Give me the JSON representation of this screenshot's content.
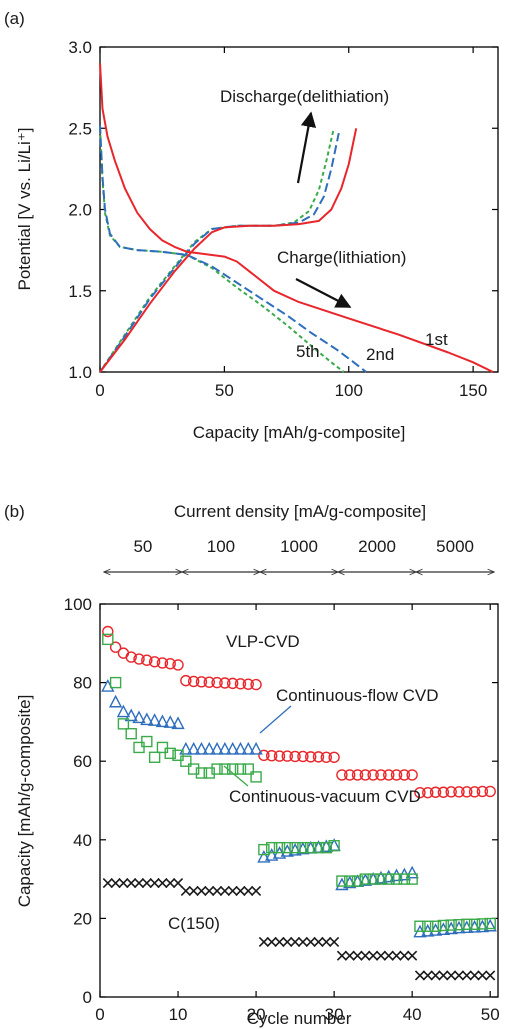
{
  "chart_data": [
    {
      "type": "line",
      "panel_label": "(a)",
      "xlabel": "Capacity [mAh/g-composite]",
      "ylabel": "Potential [V vs. Li/Li⁺]",
      "xlim": [
        0,
        160
      ],
      "ylim": [
        1.0,
        3.0
      ],
      "x_ticks": [
        "0",
        "50",
        "100",
        "150"
      ],
      "y_ticks": [
        "1.0",
        "1.5",
        "2.0",
        "2.5",
        "3.0"
      ],
      "grid": false,
      "series": [
        {
          "name": "1st",
          "color": "#e8262b",
          "dash": "solid",
          "charge": [
            [
              0,
              2.9
            ],
            [
              1,
              2.62
            ],
            [
              3,
              2.45
            ],
            [
              6,
              2.3
            ],
            [
              10,
              2.13
            ],
            [
              15,
              1.98
            ],
            [
              20,
              1.88
            ],
            [
              25,
              1.81
            ],
            [
              30,
              1.77
            ],
            [
              35,
              1.74
            ],
            [
              40,
              1.73
            ],
            [
              50,
              1.71
            ],
            [
              55,
              1.68
            ],
            [
              60,
              1.62
            ],
            [
              70,
              1.5
            ],
            [
              80,
              1.43
            ],
            [
              100,
              1.33
            ],
            [
              120,
              1.23
            ],
            [
              140,
              1.12
            ],
            [
              150,
              1.06
            ],
            [
              158,
              1.0
            ]
          ],
          "discharge": [
            [
              0,
              1.0
            ],
            [
              10,
              1.2
            ],
            [
              20,
              1.42
            ],
            [
              30,
              1.62
            ],
            [
              38,
              1.76
            ],
            [
              45,
              1.86
            ],
            [
              50,
              1.89
            ],
            [
              60,
              1.9
            ],
            [
              70,
              1.9
            ],
            [
              80,
              1.91
            ],
            [
              88,
              1.93
            ],
            [
              93,
              2.0
            ],
            [
              97,
              2.13
            ],
            [
              100,
              2.28
            ],
            [
              103,
              2.5
            ]
          ]
        },
        {
          "name": "2nd",
          "color": "#2e6ebd",
          "dash": "long-dash",
          "charge": [
            [
              0,
              2.52
            ],
            [
              1,
              2.2
            ],
            [
              2,
              2.0
            ],
            [
              4,
              1.85
            ],
            [
              8,
              1.77
            ],
            [
              15,
              1.75
            ],
            [
              25,
              1.74
            ],
            [
              35,
              1.72
            ],
            [
              45,
              1.65
            ],
            [
              55,
              1.55
            ],
            [
              65,
              1.45
            ],
            [
              75,
              1.35
            ],
            [
              85,
              1.24
            ],
            [
              95,
              1.14
            ],
            [
              102,
              1.06
            ],
            [
              107,
              1.0
            ]
          ],
          "discharge": [
            [
              0,
              1.0
            ],
            [
              10,
              1.22
            ],
            [
              20,
              1.45
            ],
            [
              30,
              1.64
            ],
            [
              38,
              1.79
            ],
            [
              45,
              1.88
            ],
            [
              55,
              1.9
            ],
            [
              70,
              1.9
            ],
            [
              80,
              1.92
            ],
            [
              86,
              1.97
            ],
            [
              90,
              2.08
            ],
            [
              93,
              2.25
            ],
            [
              96,
              2.47
            ]
          ]
        },
        {
          "name": "5th",
          "color": "#3aaa4a",
          "dash": "short-dash",
          "charge": [
            [
              0,
              2.5
            ],
            [
              1,
              2.18
            ],
            [
              2,
              1.98
            ],
            [
              4,
              1.84
            ],
            [
              8,
              1.77
            ],
            [
              15,
              1.75
            ],
            [
              25,
              1.74
            ],
            [
              35,
              1.72
            ],
            [
              45,
              1.64
            ],
            [
              55,
              1.52
            ],
            [
              65,
              1.41
            ],
            [
              75,
              1.29
            ],
            [
              85,
              1.16
            ],
            [
              93,
              1.06
            ],
            [
              98,
              1.0
            ]
          ],
          "discharge": [
            [
              0,
              1.0
            ],
            [
              10,
              1.23
            ],
            [
              20,
              1.46
            ],
            [
              30,
              1.65
            ],
            [
              38,
              1.8
            ],
            [
              45,
              1.88
            ],
            [
              55,
              1.9
            ],
            [
              70,
              1.9
            ],
            [
              78,
              1.92
            ],
            [
              84,
              1.99
            ],
            [
              88,
              2.12
            ],
            [
              91,
              2.3
            ],
            [
              94,
              2.5
            ]
          ]
        }
      ],
      "annotations": {
        "discharge": "Discharge(delithiation)",
        "charge": "Charge(lithiation)",
        "arrow_color": "#111111"
      }
    },
    {
      "type": "scatter",
      "panel_label": "(b)",
      "top_axis_title": "Current density [mA/g-composite]",
      "current_densities": [
        "50",
        "100",
        "1000",
        "2000",
        "5000"
      ],
      "xlabel": "Cycle number",
      "ylabel": "Capacity [mAh/g-composite]",
      "xlim": [
        0,
        51
      ],
      "ylim": [
        0,
        100
      ],
      "x_ticks": [
        "0",
        "10",
        "20",
        "30",
        "40",
        "50"
      ],
      "y_ticks": [
        "0",
        "20",
        "40",
        "60",
        "80",
        "100"
      ],
      "grid": false,
      "series": [
        {
          "name": "VLP-CVD",
          "color": "#e8262b",
          "marker": "circle",
          "x": [
            1,
            2,
            3,
            4,
            5,
            6,
            7,
            8,
            9,
            10,
            11,
            12,
            13,
            14,
            15,
            16,
            17,
            18,
            19,
            20,
            21,
            22,
            23,
            24,
            25,
            26,
            27,
            28,
            29,
            30,
            31,
            32,
            33,
            34,
            35,
            36,
            37,
            38,
            39,
            40,
            41,
            42,
            43,
            44,
            45,
            46,
            47,
            48,
            49,
            50
          ],
          "y": [
            93,
            89,
            87.5,
            86.5,
            86,
            85.7,
            85.3,
            85,
            84.8,
            84.5,
            80.5,
            80.3,
            80.2,
            80.1,
            80,
            79.9,
            79.8,
            79.7,
            79.6,
            79.5,
            61.5,
            61.4,
            61.3,
            61.3,
            61.2,
            61.2,
            61.1,
            61.1,
            61,
            61,
            56.5,
            56.5,
            56.5,
            56.5,
            56.5,
            56.5,
            56.5,
            56.5,
            56.5,
            56.5,
            52,
            52,
            52.1,
            52.1,
            52.2,
            52.2,
            52.2,
            52.2,
            52.3,
            52.3
          ]
        },
        {
          "name": "Continuous-flow CVD",
          "color": "#2e6ebd",
          "marker": "triangle",
          "x": [
            1,
            2,
            3,
            4,
            5,
            6,
            7,
            8,
            9,
            10,
            11,
            12,
            13,
            14,
            15,
            16,
            17,
            18,
            19,
            20,
            21,
            22,
            23,
            24,
            25,
            26,
            27,
            28,
            29,
            30,
            31,
            32,
            33,
            34,
            35,
            36,
            37,
            38,
            39,
            40,
            41,
            42,
            43,
            44,
            45,
            46,
            47,
            48,
            49,
            50
          ],
          "y": [
            79,
            75,
            72.5,
            71.5,
            71,
            70.5,
            70.3,
            70,
            69.8,
            69.5,
            63,
            63,
            63,
            63,
            63,
            63,
            63,
            63,
            63,
            63,
            35.5,
            36,
            36.5,
            37,
            37.3,
            37.6,
            37.8,
            38,
            38.2,
            38.5,
            28.5,
            29,
            29.3,
            29.6,
            29.9,
            30.2,
            30.5,
            30.8,
            31,
            31.5,
            16.5,
            16.7,
            16.9,
            17.1,
            17.3,
            17.5,
            17.6,
            17.7,
            17.8,
            18
          ]
        },
        {
          "name": "Continuous-vacuum CVD",
          "color": "#3aaa4a",
          "marker": "square",
          "x": [
            1,
            2,
            3,
            4,
            5,
            6,
            7,
            8,
            9,
            10,
            11,
            12,
            13,
            14,
            15,
            16,
            17,
            18,
            19,
            20,
            21,
            22,
            23,
            24,
            25,
            26,
            27,
            28,
            29,
            30,
            31,
            32,
            33,
            34,
            35,
            36,
            37,
            38,
            39,
            40,
            41,
            42,
            43,
            44,
            45,
            46,
            47,
            48,
            49,
            50
          ],
          "y": [
            91,
            80,
            69.5,
            67,
            63.5,
            65,
            61,
            63.5,
            62,
            61.5,
            60,
            58,
            57,
            57,
            58,
            58,
            58,
            58,
            58,
            56,
            37.5,
            38,
            38,
            38,
            38,
            38,
            38,
            38,
            38,
            38.5,
            29.5,
            29.5,
            29.5,
            30,
            30,
            30,
            30,
            30,
            30,
            30,
            18,
            18,
            18,
            18.2,
            18.3,
            18.4,
            18.5,
            18.5,
            18.6,
            18.7
          ]
        },
        {
          "name": "C(150)",
          "color": "#1a1a1a",
          "marker": "x",
          "x": [
            1,
            2,
            3,
            4,
            5,
            6,
            7,
            8,
            9,
            10,
            11,
            12,
            13,
            14,
            15,
            16,
            17,
            18,
            19,
            20,
            21,
            22,
            23,
            24,
            25,
            26,
            27,
            28,
            29,
            30,
            31,
            32,
            33,
            34,
            35,
            36,
            37,
            38,
            39,
            40,
            41,
            42,
            43,
            44,
            45,
            46,
            47,
            48,
            49,
            50
          ],
          "y": [
            29,
            29,
            29,
            29,
            29,
            29,
            29,
            29,
            29,
            29,
            27,
            27,
            27,
            27,
            27,
            27,
            27,
            27,
            27,
            27,
            14,
            14,
            14,
            14,
            14,
            14,
            14,
            14,
            14,
            14,
            10.5,
            10.5,
            10.5,
            10.5,
            10.5,
            10.5,
            10.5,
            10.5,
            10.5,
            10.5,
            5.5,
            5.5,
            5.5,
            5.5,
            5.5,
            5.5,
            5.5,
            5.5,
            5.5,
            5.5
          ]
        }
      ]
    }
  ]
}
